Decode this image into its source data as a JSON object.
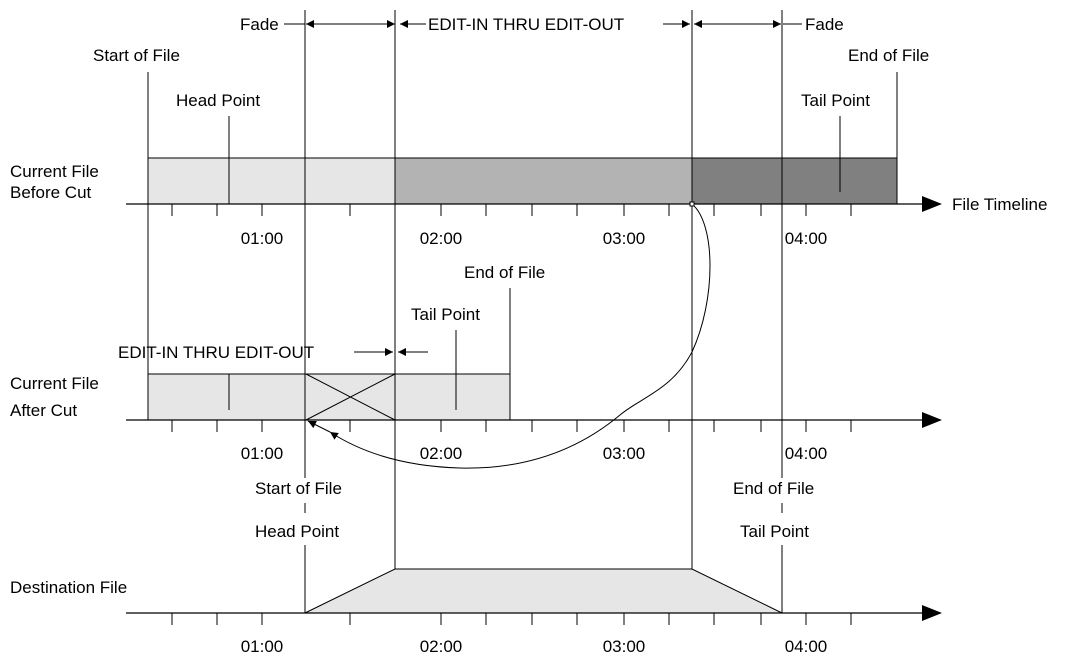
{
  "top": {
    "fade_left": "Fade",
    "edit_range": "EDIT-IN THRU EDIT-OUT",
    "fade_right": "Fade"
  },
  "before": {
    "start_of_file": "Start of File",
    "end_of_file": "End of File",
    "head_point": "Head Point",
    "tail_point": "Tail Point",
    "label_line1": "Current File",
    "label_line2": "Before Cut",
    "axis_label": "File Timeline",
    "ticks": [
      "01:00",
      "02:00",
      "03:00",
      "04:00"
    ]
  },
  "after": {
    "end_of_file": "End of File",
    "tail_point": "Tail Point",
    "edit_range": "EDIT-IN THRU EDIT-OUT",
    "label_line1": "Current File",
    "label_line2": "After Cut",
    "ticks": [
      "01:00",
      "02:00",
      "03:00",
      "04:00"
    ]
  },
  "destination": {
    "start_of_file": "Start of File",
    "head_point": "Head Point",
    "end_of_file": "End of File",
    "tail_point": "Tail Point",
    "label": "Destination File",
    "ticks": [
      "01:00",
      "02:00",
      "03:00",
      "04:00"
    ]
  },
  "colors": {
    "light_fill": "#e6e6e6",
    "mid_fill": "#b3b3b3",
    "dark_fill": "#808080"
  }
}
